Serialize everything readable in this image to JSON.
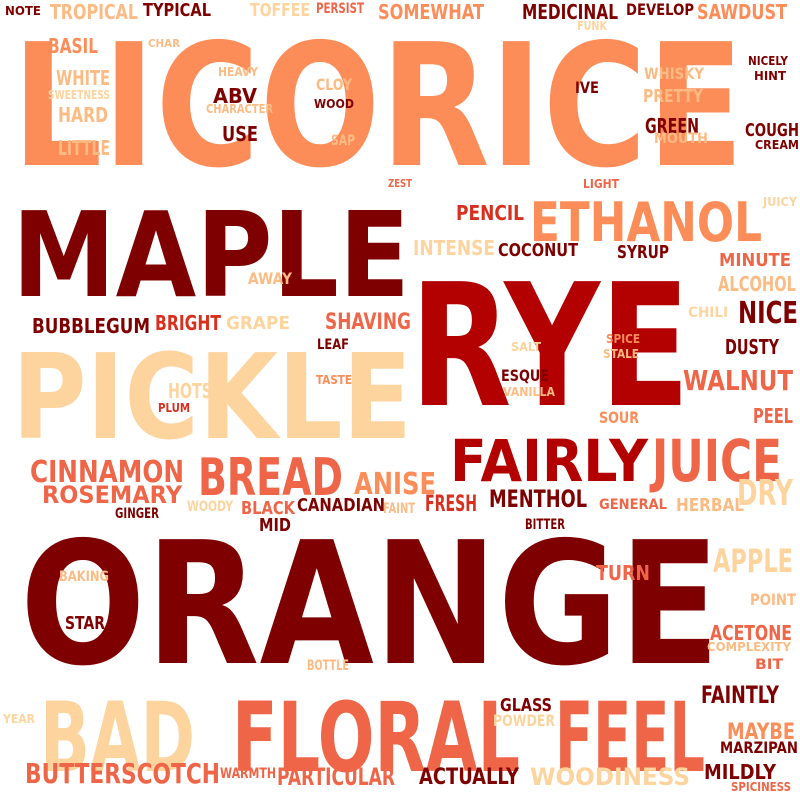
{
  "palette": {
    "dark_red": "#7f0000",
    "red": "#b30000",
    "mid_red": "#d7301f",
    "orange_red": "#ef6548",
    "orange": "#fc8d59",
    "light_orange": "#fdbb84",
    "peach": "#fdd49e"
  },
  "words": [
    {
      "text": "LICORICE",
      "color": "orange"
    },
    {
      "text": "ORANGE",
      "color": "dark_red"
    },
    {
      "text": "RYE",
      "color": "red"
    },
    {
      "text": "MAPLE",
      "color": "dark_red"
    },
    {
      "text": "PICKLE",
      "color": "peach"
    },
    {
      "text": "FLORAL",
      "color": "orange_red"
    },
    {
      "text": "FEEL",
      "color": "orange_red"
    },
    {
      "text": "BAD",
      "color": "peach"
    },
    {
      "text": "ETHANOL",
      "color": "orange"
    },
    {
      "text": "FAIRLY",
      "color": "red"
    },
    {
      "text": "JUICE",
      "color": "orange_red"
    },
    {
      "text": "BREAD",
      "color": "orange_red"
    },
    {
      "text": "ANISE",
      "color": "orange"
    },
    {
      "text": "CINNAMON",
      "color": "orange_red"
    },
    {
      "text": "ROSEMARY",
      "color": "orange_red"
    },
    {
      "text": "BUTTERSCOTCH",
      "color": "orange_red"
    },
    {
      "text": "WOODINESS",
      "color": "peach"
    },
    {
      "text": "TROPICAL",
      "color": "light_orange"
    },
    {
      "text": "TYPICAL",
      "color": "dark_red"
    },
    {
      "text": "TOFFEE",
      "color": "peach"
    },
    {
      "text": "PERSIST",
      "color": "orange_red"
    },
    {
      "text": "SOMEWHAT",
      "color": "orange"
    },
    {
      "text": "MEDICINAL",
      "color": "dark_red"
    },
    {
      "text": "DEVELOP",
      "color": "dark_red"
    },
    {
      "text": "SAWDUST",
      "color": "orange"
    },
    {
      "text": "NOTE",
      "color": "dark_red"
    },
    {
      "text": "BASIL",
      "color": "orange"
    },
    {
      "text": "CHAR",
      "color": "light_orange"
    },
    {
      "text": "FUNK",
      "color": "peach"
    },
    {
      "text": "HEAVY",
      "color": "light_orange"
    },
    {
      "text": "WHITE",
      "color": "light_orange"
    },
    {
      "text": "SWEETNESS",
      "color": "peach"
    },
    {
      "text": "HARD",
      "color": "light_orange"
    },
    {
      "text": "LITTLE",
      "color": "light_orange"
    },
    {
      "text": "ABV",
      "color": "dark_red"
    },
    {
      "text": "CHARACTER",
      "color": "light_orange"
    },
    {
      "text": "CLOY",
      "color": "light_orange"
    },
    {
      "text": "WOOD",
      "color": "dark_red"
    },
    {
      "text": "USE",
      "color": "dark_red"
    },
    {
      "text": "SAP",
      "color": "light_orange"
    },
    {
      "text": "IVE",
      "color": "dark_red"
    },
    {
      "text": "WHISKY",
      "color": "light_orange"
    },
    {
      "text": "PRETTY",
      "color": "light_orange"
    },
    {
      "text": "GREEN",
      "color": "dark_red"
    },
    {
      "text": "MOUTH",
      "color": "light_orange"
    },
    {
      "text": "NICELY",
      "color": "dark_red"
    },
    {
      "text": "HINT",
      "color": "dark_red"
    },
    {
      "text": "COUGH",
      "color": "dark_red"
    },
    {
      "text": "CREAM",
      "color": "dark_red"
    },
    {
      "text": "ZEST",
      "color": "orange_red"
    },
    {
      "text": "LIGHT",
      "color": "orange_red"
    },
    {
      "text": "JUICY",
      "color": "peach"
    },
    {
      "text": "PENCIL",
      "color": "mid_red"
    },
    {
      "text": "INTENSE",
      "color": "peach"
    },
    {
      "text": "COCONUT",
      "color": "dark_red"
    },
    {
      "text": "SYRUP",
      "color": "dark_red"
    },
    {
      "text": "MINUTE",
      "color": "orange_red"
    },
    {
      "text": "ALCOHOL",
      "color": "light_orange"
    },
    {
      "text": "AWAY",
      "color": "light_orange"
    },
    {
      "text": "CHILI",
      "color": "peach"
    },
    {
      "text": "NICE",
      "color": "dark_red"
    },
    {
      "text": "BUBBLEGUM",
      "color": "dark_red"
    },
    {
      "text": "BRIGHT",
      "color": "mid_red"
    },
    {
      "text": "GRAPE",
      "color": "peach"
    },
    {
      "text": "SHAVING",
      "color": "orange_red"
    },
    {
      "text": "LEAF",
      "color": "dark_red"
    },
    {
      "text": "SALT",
      "color": "peach"
    },
    {
      "text": "SPICE",
      "color": "orange"
    },
    {
      "text": "STALE",
      "color": "light_orange"
    },
    {
      "text": "DUSTY",
      "color": "dark_red"
    },
    {
      "text": "TASTE",
      "color": "orange"
    },
    {
      "text": "ESQUE",
      "color": "dark_red"
    },
    {
      "text": "VANILLA",
      "color": "light_orange"
    },
    {
      "text": "WALNUT",
      "color": "orange_red"
    },
    {
      "text": "HOTS",
      "color": "peach"
    },
    {
      "text": "PLUM",
      "color": "mid_red"
    },
    {
      "text": "PEEL",
      "color": "orange_red"
    },
    {
      "text": "SOUR",
      "color": "orange"
    },
    {
      "text": "BLACK",
      "color": "orange_red"
    },
    {
      "text": "MID",
      "color": "dark_red"
    },
    {
      "text": "CANADIAN",
      "color": "dark_red"
    },
    {
      "text": "FAINT",
      "color": "light_orange"
    },
    {
      "text": "FRESH",
      "color": "mid_red"
    },
    {
      "text": "MENTHOL",
      "color": "dark_red"
    },
    {
      "text": "GENERAL",
      "color": "orange_red"
    },
    {
      "text": "HERBAL",
      "color": "light_orange"
    },
    {
      "text": "DRY",
      "color": "peach"
    },
    {
      "text": "GINGER",
      "color": "dark_red"
    },
    {
      "text": "WOODY",
      "color": "peach"
    },
    {
      "text": "BITTER",
      "color": "dark_red"
    },
    {
      "text": "APPLE",
      "color": "peach"
    },
    {
      "text": "BAKING",
      "color": "light_orange"
    },
    {
      "text": "TURN",
      "color": "orange_red"
    },
    {
      "text": "POINT",
      "color": "light_orange"
    },
    {
      "text": "STAR",
      "color": "dark_red"
    },
    {
      "text": "ACETONE",
      "color": "orange_red"
    },
    {
      "text": "COMPLEXITY",
      "color": "light_orange"
    },
    {
      "text": "BIT",
      "color": "orange_red"
    },
    {
      "text": "BOTTLE",
      "color": "light_orange"
    },
    {
      "text": "FAINTLY",
      "color": "dark_red"
    },
    {
      "text": "YEAR",
      "color": "peach"
    },
    {
      "text": "GLASS",
      "color": "dark_red"
    },
    {
      "text": "POWDER",
      "color": "peach"
    },
    {
      "text": "MAYBE",
      "color": "orange"
    },
    {
      "text": "MARZIPAN",
      "color": "dark_red"
    },
    {
      "text": "WARMTH",
      "color": "orange_red"
    },
    {
      "text": "PARTICULAR",
      "color": "orange_red"
    },
    {
      "text": "ACTUALLY",
      "color": "dark_red"
    },
    {
      "text": "MILDLY",
      "color": "dark_red"
    },
    {
      "text": "SPICINESS",
      "color": "orange_red"
    }
  ]
}
